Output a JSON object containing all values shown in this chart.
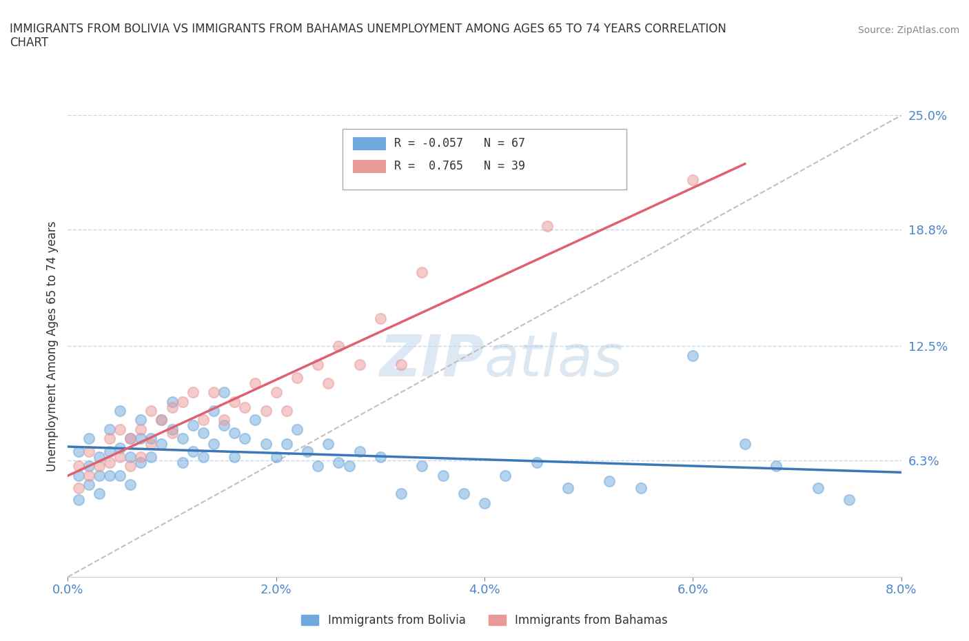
{
  "title": "IMMIGRANTS FROM BOLIVIA VS IMMIGRANTS FROM BAHAMAS UNEMPLOYMENT AMONG AGES 65 TO 74 YEARS CORRELATION\nCHART",
  "source_text": "Source: ZipAtlas.com",
  "ylabel": "Unemployment Among Ages 65 to 74 years",
  "xlim": [
    0.0,
    0.08
  ],
  "ylim": [
    0.0,
    0.25
  ],
  "yticks": [
    0.0,
    0.063,
    0.125,
    0.188,
    0.25
  ],
  "ytick_labels": [
    "",
    "6.3%",
    "12.5%",
    "18.8%",
    "25.0%"
  ],
  "xticks": [
    0.0,
    0.02,
    0.04,
    0.06,
    0.08
  ],
  "xtick_labels": [
    "0.0%",
    "2.0%",
    "4.0%",
    "6.0%",
    "8.0%"
  ],
  "bolivia_color": "#6fa8dc",
  "bahamas_color": "#ea9999",
  "bolivia_trend_color": "#3a78b8",
  "bahamas_trend_color": "#e06070",
  "diag_color": "#c0c0c0",
  "grid_color": "#c8d4e8",
  "bolivia_R": -0.057,
  "bolivia_N": 67,
  "bahamas_R": 0.765,
  "bahamas_N": 39,
  "bolivia_scatter_x": [
    0.001,
    0.001,
    0.001,
    0.002,
    0.002,
    0.002,
    0.003,
    0.003,
    0.003,
    0.004,
    0.004,
    0.004,
    0.005,
    0.005,
    0.005,
    0.006,
    0.006,
    0.006,
    0.007,
    0.007,
    0.007,
    0.008,
    0.008,
    0.009,
    0.009,
    0.01,
    0.01,
    0.011,
    0.011,
    0.012,
    0.012,
    0.013,
    0.013,
    0.014,
    0.014,
    0.015,
    0.015,
    0.016,
    0.016,
    0.017,
    0.018,
    0.019,
    0.02,
    0.021,
    0.022,
    0.023,
    0.024,
    0.025,
    0.026,
    0.027,
    0.028,
    0.03,
    0.032,
    0.034,
    0.036,
    0.038,
    0.04,
    0.042,
    0.045,
    0.048,
    0.052,
    0.055,
    0.06,
    0.065,
    0.068,
    0.072,
    0.075
  ],
  "bolivia_scatter_y": [
    0.068,
    0.055,
    0.042,
    0.075,
    0.06,
    0.05,
    0.065,
    0.055,
    0.045,
    0.08,
    0.068,
    0.055,
    0.09,
    0.07,
    0.055,
    0.075,
    0.065,
    0.05,
    0.085,
    0.075,
    0.062,
    0.075,
    0.065,
    0.085,
    0.072,
    0.095,
    0.08,
    0.075,
    0.062,
    0.082,
    0.068,
    0.078,
    0.065,
    0.09,
    0.072,
    0.1,
    0.082,
    0.078,
    0.065,
    0.075,
    0.085,
    0.072,
    0.065,
    0.072,
    0.08,
    0.068,
    0.06,
    0.072,
    0.062,
    0.06,
    0.068,
    0.065,
    0.045,
    0.06,
    0.055,
    0.045,
    0.04,
    0.055,
    0.062,
    0.048,
    0.052,
    0.048,
    0.12,
    0.072,
    0.06,
    0.048,
    0.042
  ],
  "bahamas_scatter_x": [
    0.001,
    0.001,
    0.002,
    0.002,
    0.003,
    0.004,
    0.004,
    0.005,
    0.005,
    0.006,
    0.006,
    0.007,
    0.007,
    0.008,
    0.008,
    0.009,
    0.01,
    0.01,
    0.011,
    0.012,
    0.013,
    0.014,
    0.015,
    0.016,
    0.017,
    0.018,
    0.019,
    0.02,
    0.021,
    0.022,
    0.024,
    0.025,
    0.026,
    0.028,
    0.03,
    0.032,
    0.034,
    0.046,
    0.06
  ],
  "bahamas_scatter_y": [
    0.06,
    0.048,
    0.068,
    0.055,
    0.06,
    0.075,
    0.062,
    0.08,
    0.065,
    0.075,
    0.06,
    0.08,
    0.065,
    0.09,
    0.072,
    0.085,
    0.092,
    0.078,
    0.095,
    0.1,
    0.085,
    0.1,
    0.085,
    0.095,
    0.092,
    0.105,
    0.09,
    0.1,
    0.09,
    0.108,
    0.115,
    0.105,
    0.125,
    0.115,
    0.14,
    0.115,
    0.165,
    0.19,
    0.215
  ],
  "watermark_text": "ZIPatlas",
  "watermark_color": "#dce8f5",
  "background_color": "#ffffff",
  "legend_bolivia_label": "Immigrants from Bolivia",
  "legend_bahamas_label": "Immigrants from Bahamas",
  "tick_color": "#4a86c8",
  "title_color": "#333333",
  "source_color": "#888888"
}
